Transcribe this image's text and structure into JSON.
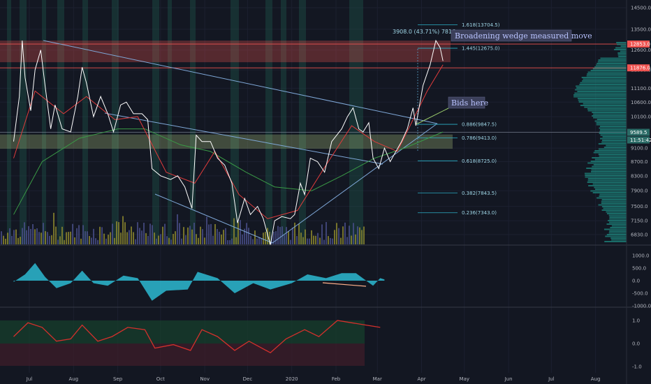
{
  "chart_data": {
    "type": "line",
    "symbol_context": "price chart with volume profile, oscillator and momentum panes",
    "x_ticks": [
      "Jul",
      "Aug",
      "Sep",
      "Oct",
      "Nov",
      "Dec",
      "2020",
      "Feb",
      "Mar",
      "Apr",
      "May",
      "Jun",
      "Jul",
      "Aug"
    ],
    "price_axis": {
      "scale": "log",
      "range": [
        6550,
        15000
      ],
      "ticks": [
        14500.0,
        13500.0,
        12600.0,
        11800.0,
        11100.0,
        10600.0,
        10100.0,
        9600.0,
        9100.0,
        8700.0,
        8300.0,
        7900.0,
        7500.0,
        7150.0,
        6830.0
      ],
      "tick_labels": [
        "14500.0",
        "13500.0",
        "12600.0",
        "11800.0",
        "11100.0",
        "10600.0",
        "10100.0",
        "9600.0",
        "9100.0",
        "8700.0",
        "8300.0",
        "7900.0",
        "7500.0",
        "7150.0",
        "6830.0"
      ],
      "flags": [
        {
          "label": "12853.0",
          "value": 12853,
          "color": "#ef5350"
        },
        {
          "label": "11876.0",
          "value": 11876,
          "color": "#ef5350"
        },
        {
          "label": "9589.5",
          "value": 9589.5,
          "color": "#2a6b66"
        }
      ],
      "countdown": "11:51:42"
    },
    "price_series": {
      "name": "",
      "color": "#ffffff",
      "points": [
        [
          "2019-06-20",
          9300
        ],
        [
          "2019-06-24",
          10800
        ],
        [
          "2019-06-26",
          13000
        ],
        [
          "2019-06-28",
          11500
        ],
        [
          "2019-07-02",
          10300
        ],
        [
          "2019-07-05",
          11800
        ],
        [
          "2019-07-09",
          12600
        ],
        [
          "2019-07-12",
          11200
        ],
        [
          "2019-07-16",
          9700
        ],
        [
          "2019-07-19",
          10500
        ],
        [
          "2019-07-24",
          9700
        ],
        [
          "2019-07-30",
          9600
        ],
        [
          "2019-08-04",
          10800
        ],
        [
          "2019-08-07",
          11900
        ],
        [
          "2019-08-10",
          11300
        ],
        [
          "2019-08-15",
          10100
        ],
        [
          "2019-08-20",
          10800
        ],
        [
          "2019-08-25",
          10200
        ],
        [
          "2019-08-29",
          9600
        ],
        [
          "2019-09-03",
          10500
        ],
        [
          "2019-09-07",
          10600
        ],
        [
          "2019-09-12",
          10200
        ],
        [
          "2019-09-18",
          10200
        ],
        [
          "2019-09-22",
          10000
        ],
        [
          "2019-09-25",
          8500
        ],
        [
          "2019-10-01",
          8300
        ],
        [
          "2019-10-08",
          8200
        ],
        [
          "2019-10-13",
          8300
        ],
        [
          "2019-10-18",
          8000
        ],
        [
          "2019-10-23",
          7450
        ],
        [
          "2019-10-26",
          9500
        ],
        [
          "2019-10-30",
          9300
        ],
        [
          "2019-11-05",
          9300
        ],
        [
          "2019-11-10",
          8800
        ],
        [
          "2019-11-15",
          8600
        ],
        [
          "2019-11-20",
          8100
        ],
        [
          "2019-11-24",
          7100
        ],
        [
          "2019-11-29",
          7700
        ],
        [
          "2019-12-03",
          7300
        ],
        [
          "2019-12-08",
          7500
        ],
        [
          "2019-12-12",
          7200
        ],
        [
          "2019-12-17",
          6600
        ],
        [
          "2019-12-20",
          7150
        ],
        [
          "2019-12-25",
          7250
        ],
        [
          "2019-12-31",
          7200
        ],
        [
          "2020-01-03",
          7300
        ],
        [
          "2020-01-07",
          8100
        ],
        [
          "2020-01-10",
          7800
        ],
        [
          "2020-01-14",
          8800
        ],
        [
          "2020-01-19",
          8700
        ],
        [
          "2020-01-24",
          8400
        ],
        [
          "2020-01-29",
          9300
        ],
        [
          "2020-02-05",
          9700
        ],
        [
          "2020-02-09",
          10100
        ],
        [
          "2020-02-13",
          10400
        ],
        [
          "2020-02-17",
          9700
        ],
        [
          "2020-02-20",
          9600
        ],
        [
          "2020-02-24",
          9900
        ],
        [
          "2020-02-27",
          8800
        ],
        [
          "2020-03-02",
          8500
        ],
        [
          "2020-03-06",
          9100
        ],
        [
          "2020-03-10",
          8700
        ],
        [
          "2020-03-14",
          9000
        ],
        [
          "2020-03-18",
          9300
        ],
        [
          "2020-03-22",
          9700
        ],
        [
          "2020-03-26",
          10400
        ],
        [
          "2020-03-28",
          9800
        ],
        [
          "2020-04-02",
          11200
        ],
        [
          "2020-04-07",
          12000
        ],
        [
          "2020-04-11",
          13000
        ],
        [
          "2020-04-14",
          12700
        ],
        [
          "2020-04-16",
          12150
        ]
      ]
    },
    "ema_short": {
      "color": "#e03c3c",
      "points": [
        [
          "2019-06-20",
          8800
        ],
        [
          "2019-07-05",
          11000
        ],
        [
          "2019-07-25",
          10200
        ],
        [
          "2019-08-10",
          10800
        ],
        [
          "2019-08-30",
          10000
        ],
        [
          "2019-09-15",
          10100
        ],
        [
          "2019-10-05",
          8400
        ],
        [
          "2019-10-25",
          8100
        ],
        [
          "2019-11-08",
          9000
        ],
        [
          "2019-11-25",
          7800
        ],
        [
          "2019-12-15",
          7200
        ],
        [
          "2020-01-05",
          7400
        ],
        [
          "2020-01-25",
          8600
        ],
        [
          "2020-02-12",
          9800
        ],
        [
          "2020-02-28",
          9300
        ],
        [
          "2020-03-15",
          9000
        ],
        [
          "2020-04-05",
          11000
        ],
        [
          "2020-04-16",
          12000
        ]
      ]
    },
    "ema_long": {
      "color": "#3a9a46",
      "points": [
        [
          "2019-06-20",
          7300
        ],
        [
          "2019-07-10",
          8700
        ],
        [
          "2019-08-05",
          9400
        ],
        [
          "2019-09-01",
          9700
        ],
        [
          "2019-09-20",
          9700
        ],
        [
          "2019-10-15",
          9200
        ],
        [
          "2019-11-05",
          9000
        ],
        [
          "2019-11-30",
          8400
        ],
        [
          "2019-12-20",
          8000
        ],
        [
          "2020-01-15",
          7900
        ],
        [
          "2020-02-05",
          8300
        ],
        [
          "2020-02-28",
          8800
        ],
        [
          "2020-03-20",
          9100
        ],
        [
          "2020-04-16",
          9600
        ]
      ]
    },
    "fib_levels": [
      {
        "label": "1.618(13704.5)",
        "value": 13704.5
      },
      {
        "label": "1.445(12675.0)",
        "value": 12675.0
      },
      {
        "label": "0.886(9847.5)",
        "value": 9847.5
      },
      {
        "label": "0.786(9413.0)",
        "value": 9413.0
      },
      {
        "label": "0.618(8725.0)",
        "value": 8725.0
      },
      {
        "label": "0.382(7843.5)",
        "value": 7843.5
      },
      {
        "label": "0.236(7343.0)",
        "value": 7343.0
      }
    ],
    "zones": [
      {
        "type": "resistance",
        "from": 12100,
        "to": 13000,
        "color": "#ef5350"
      },
      {
        "type": "support",
        "from": 9080,
        "to": 9520,
        "color": "#c5e08a"
      }
    ],
    "measure_label": "3908.0 (43.71%) 7816",
    "annotations": [
      {
        "text": "Broadening wedge measured move"
      },
      {
        "text": "Bids here"
      }
    ],
    "oscillator_pane": {
      "color": "#2bb0c8",
      "ticks": [
        "1000.0",
        "500.0",
        "0.0",
        "-500.0",
        "-1000.0"
      ],
      "range": [
        -1000,
        1000
      ],
      "values": [
        [
          "2019-06-20",
          -50
        ],
        [
          "2019-06-28",
          250
        ],
        [
          "2019-07-05",
          700
        ],
        [
          "2019-07-12",
          150
        ],
        [
          "2019-07-20",
          -300
        ],
        [
          "2019-07-30",
          -100
        ],
        [
          "2019-08-07",
          400
        ],
        [
          "2019-08-15",
          -100
        ],
        [
          "2019-08-25",
          -200
        ],
        [
          "2019-09-05",
          200
        ],
        [
          "2019-09-15",
          100
        ],
        [
          "2019-09-25",
          -800
        ],
        [
          "2019-10-05",
          -400
        ],
        [
          "2019-10-20",
          -350
        ],
        [
          "2019-10-27",
          350
        ],
        [
          "2019-11-10",
          100
        ],
        [
          "2019-11-22",
          -500
        ],
        [
          "2019-12-05",
          -100
        ],
        [
          "2019-12-17",
          -350
        ],
        [
          "2020-01-01",
          -100
        ],
        [
          "2020-01-12",
          250
        ],
        [
          "2020-01-25",
          100
        ],
        [
          "2020-02-05",
          300
        ],
        [
          "2020-02-15",
          300
        ],
        [
          "2020-02-27",
          -200
        ],
        [
          "2020-03-03",
          100
        ],
        [
          "2020-03-06",
          50
        ]
      ]
    },
    "momentum_pane": {
      "ticks": [
        "1.0",
        "0.0",
        "-1.0"
      ],
      "range": [
        -1.1,
        1.1
      ],
      "values": [
        [
          "2019-06-20",
          0.3
        ],
        [
          "2019-06-30",
          0.9
        ],
        [
          "2019-07-10",
          0.7
        ],
        [
          "2019-07-20",
          0.1
        ],
        [
          "2019-07-30",
          0.2
        ],
        [
          "2019-08-07",
          0.8
        ],
        [
          "2019-08-18",
          0.1
        ],
        [
          "2019-08-28",
          0.3
        ],
        [
          "2019-09-08",
          0.7
        ],
        [
          "2019-09-20",
          0.6
        ],
        [
          "2019-09-27",
          -0.2
        ],
        [
          "2019-10-10",
          -0.05
        ],
        [
          "2019-10-22",
          -0.3
        ],
        [
          "2019-10-30",
          0.6
        ],
        [
          "2019-11-10",
          0.3
        ],
        [
          "2019-11-22",
          -0.3
        ],
        [
          "2019-12-02",
          0.1
        ],
        [
          "2019-12-17",
          -0.4
        ],
        [
          "2019-12-28",
          0.2
        ],
        [
          "2020-01-10",
          0.6
        ],
        [
          "2020-01-20",
          0.3
        ],
        [
          "2020-02-02",
          1.0
        ],
        [
          "2020-02-12",
          0.9
        ],
        [
          "2020-02-22",
          0.8
        ],
        [
          "2020-03-03",
          0.7
        ]
      ]
    }
  }
}
